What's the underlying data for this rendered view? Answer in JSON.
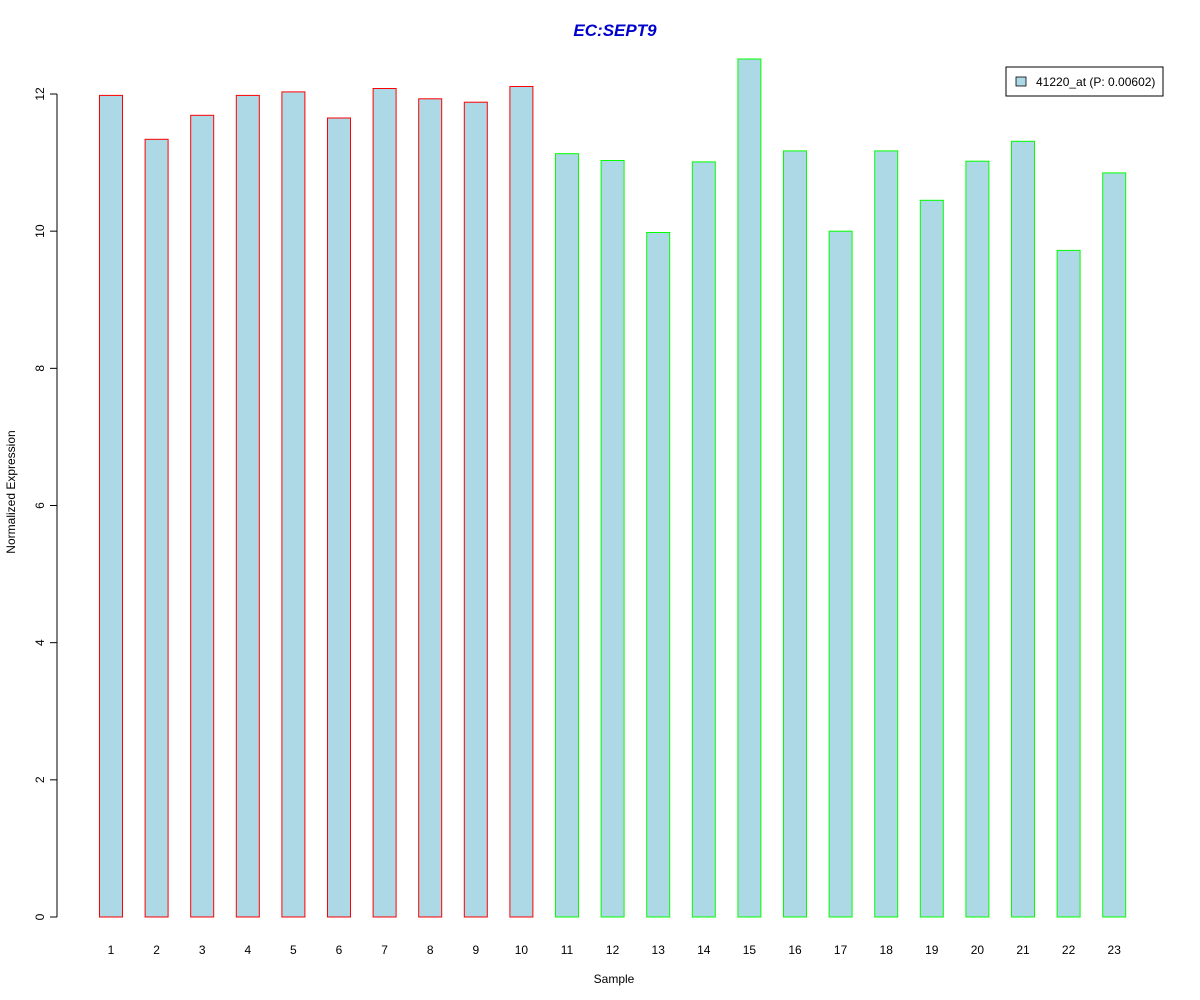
{
  "chart_data": {
    "type": "bar",
    "title": "EC:SEPT9",
    "xlabel": "Sample",
    "ylabel": "Normalized Expression",
    "categories": [
      "1",
      "2",
      "3",
      "4",
      "5",
      "6",
      "7",
      "8",
      "9",
      "10",
      "11",
      "12",
      "13",
      "14",
      "15",
      "16",
      "17",
      "18",
      "19",
      "20",
      "21",
      "22",
      "23"
    ],
    "series": [
      {
        "name": "41220_at (P: 0.00602)",
        "values": [
          11.98,
          11.34,
          11.69,
          11.98,
          12.03,
          11.65,
          12.08,
          11.93,
          11.88,
          12.11,
          11.13,
          11.03,
          9.98,
          11.01,
          12.51,
          11.17,
          10.0,
          11.17,
          10.45,
          11.02,
          11.31,
          9.72,
          10.85
        ]
      }
    ],
    "yticks": [
      0,
      2,
      4,
      6,
      8,
      10,
      12
    ],
    "ylim": [
      0,
      12.5
    ],
    "grid": false,
    "legend_position": "top-right",
    "colors": {
      "bar_fill": "#add8e6",
      "group_a_border": "#ff0000",
      "group_b_border": "#00ff00",
      "title": "#0000cd"
    },
    "border_groups": [
      "red",
      "red",
      "red",
      "red",
      "red",
      "red",
      "red",
      "red",
      "red",
      "red",
      "green",
      "green",
      "green",
      "green",
      "green",
      "green",
      "green",
      "green",
      "green",
      "green",
      "green",
      "green",
      "green"
    ]
  }
}
